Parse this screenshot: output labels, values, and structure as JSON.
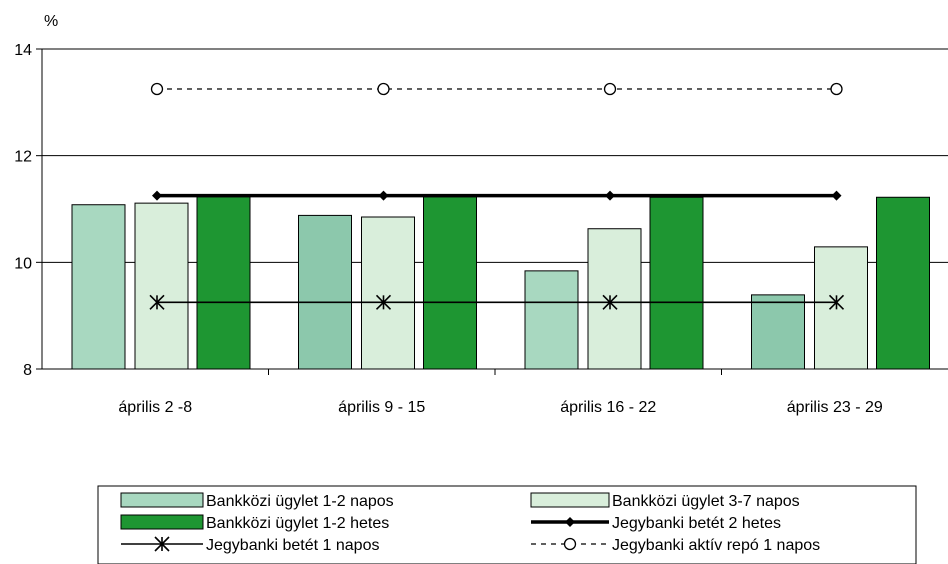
{
  "chart_data": {
    "type": "bar",
    "ylabel": "%",
    "ylim": [
      8,
      14
    ],
    "yticks": [
      "8",
      "10",
      "12",
      "14"
    ],
    "categories": [
      "április 2 -8",
      "április 9 - 15",
      "április 16 - 22",
      "április 23 - 29"
    ],
    "series": [
      {
        "name": "Bankközi ügylet 1-2 napos",
        "kind": "bar",
        "colors": [
          "#a8d8c0",
          "#8cc8ac",
          "#a8d8c0",
          "#8cc8ac"
        ],
        "values": [
          11.08,
          10.88,
          9.84,
          9.39
        ]
      },
      {
        "name": "Bankközi ügylet 3-7 napos",
        "kind": "bar",
        "color": "#d9eedb",
        "values": [
          11.11,
          10.85,
          10.63,
          10.29
        ]
      },
      {
        "name": "Bankközi ügylet 1-2 hetes",
        "kind": "bar",
        "color": "#1e9632",
        "values": [
          11.23,
          11.23,
          11.22,
          11.22
        ]
      },
      {
        "name": "Jegybanki betét 2 hetes",
        "kind": "line",
        "marker": "diamond",
        "values": [
          11.25,
          11.25,
          11.25,
          11.25
        ]
      },
      {
        "name": "Jegybanki betét 1 napos",
        "kind": "line",
        "marker": "star",
        "values": [
          9.25,
          9.25,
          9.25,
          9.25
        ]
      },
      {
        "name": "Jegybanki aktív repó 1 napos",
        "kind": "line",
        "marker": "circle",
        "dashed": true,
        "values": [
          13.25,
          13.25,
          13.25,
          13.25
        ]
      }
    ],
    "grid": true,
    "legend_position": "bottom"
  }
}
